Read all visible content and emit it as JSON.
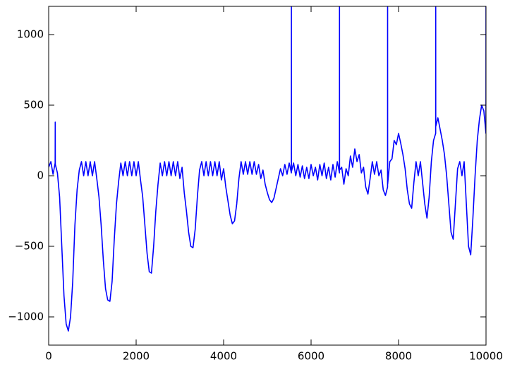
{
  "chart_data": {
    "type": "line",
    "color": "#0000ff",
    "x": [
      0,
      50,
      100,
      148,
      150,
      152,
      200,
      250,
      300,
      350,
      400,
      450,
      500,
      550,
      600,
      650,
      700,
      750,
      800,
      850,
      900,
      950,
      1000,
      1050,
      1100,
      1150,
      1200,
      1250,
      1300,
      1350,
      1400,
      1450,
      1500,
      1550,
      1600,
      1650,
      1700,
      1750,
      1800,
      1850,
      1900,
      1950,
      2000,
      2050,
      2100,
      2150,
      2200,
      2250,
      2300,
      2350,
      2400,
      2450,
      2500,
      2550,
      2600,
      2650,
      2700,
      2750,
      2800,
      2850,
      2900,
      2950,
      3000,
      3050,
      3100,
      3150,
      3200,
      3250,
      3300,
      3350,
      3400,
      3450,
      3500,
      3550,
      3600,
      3650,
      3700,
      3750,
      3800,
      3850,
      3900,
      3950,
      4000,
      4050,
      4100,
      4150,
      4200,
      4250,
      4300,
      4350,
      4400,
      4450,
      4500,
      4550,
      4600,
      4650,
      4700,
      4750,
      4800,
      4850,
      4900,
      4950,
      5000,
      5050,
      5100,
      5150,
      5200,
      5250,
      5300,
      5350,
      5400,
      5450,
      5500,
      5549,
      5550,
      5551,
      5600,
      5650,
      5700,
      5750,
      5800,
      5850,
      5900,
      5950,
      6000,
      6050,
      6100,
      6150,
      6200,
      6250,
      6300,
      6350,
      6400,
      6450,
      6500,
      6550,
      6600,
      6649,
      6650,
      6651,
      6700,
      6750,
      6800,
      6850,
      6900,
      6950,
      7000,
      7050,
      7100,
      7150,
      7200,
      7250,
      7300,
      7350,
      7400,
      7450,
      7500,
      7550,
      7600,
      7650,
      7700,
      7749,
      7750,
      7751,
      7800,
      7850,
      7900,
      7950,
      8000,
      8050,
      8100,
      8150,
      8200,
      8250,
      8300,
      8350,
      8400,
      8450,
      8500,
      8550,
      8600,
      8650,
      8700,
      8750,
      8800,
      8849,
      8850,
      8851,
      8900,
      8950,
      9000,
      9050,
      9100,
      9150,
      9200,
      9250,
      9300,
      9350,
      9400,
      9450,
      9500,
      9550,
      9600,
      9650,
      9700,
      9750,
      9800,
      9850,
      9900,
      9950,
      9999,
      10000
    ],
    "values": [
      60,
      100,
      10,
      90,
      380,
      80,
      20,
      -150,
      -500,
      -850,
      -1050,
      -1100,
      -1000,
      -750,
      -350,
      -100,
      40,
      100,
      0,
      100,
      0,
      100,
      0,
      100,
      -20,
      -150,
      -350,
      -600,
      -800,
      -880,
      -890,
      -750,
      -450,
      -200,
      -40,
      90,
      0,
      100,
      0,
      100,
      0,
      100,
      0,
      100,
      -30,
      -150,
      -350,
      -550,
      -680,
      -690,
      -500,
      -250,
      -60,
      90,
      0,
      100,
      0,
      100,
      0,
      100,
      0,
      100,
      -20,
      60,
      -120,
      -250,
      -400,
      -500,
      -510,
      -380,
      -150,
      40,
      100,
      0,
      100,
      0,
      100,
      0,
      100,
      0,
      100,
      -30,
      50,
      -80,
      -180,
      -280,
      -340,
      -320,
      -200,
      -20,
      100,
      10,
      100,
      10,
      100,
      10,
      100,
      10,
      80,
      -20,
      40,
      -60,
      -120,
      -170,
      -190,
      -160,
      -90,
      -20,
      50,
      0,
      80,
      10,
      90,
      20,
      1200,
      30,
      90,
      0,
      80,
      -10,
      70,
      -20,
      60,
      -20,
      80,
      0,
      60,
      -30,
      80,
      0,
      90,
      -20,
      60,
      -30,
      80,
      -10,
      100,
      20,
      1200,
      40,
      60,
      -60,
      50,
      0,
      140,
      60,
      190,
      100,
      150,
      20,
      60,
      -80,
      -130,
      -20,
      100,
      10,
      100,
      0,
      40,
      -100,
      -140,
      -80,
      1200,
      -60,
      100,
      120,
      250,
      220,
      300,
      230,
      150,
      50,
      -100,
      -200,
      -230,
      -50,
      100,
      0,
      100,
      -50,
      -200,
      -300,
      -150,
      100,
      250,
      300,
      1200,
      350,
      410,
      330,
      250,
      150,
      0,
      -200,
      -400,
      -450,
      -200,
      50,
      100,
      0,
      100,
      -200,
      -500,
      -560,
      -300,
      0,
      250,
      400,
      500,
      460,
      300,
      1200
    ],
    "xlim": [
      0,
      10000
    ],
    "ylim": [
      -1200,
      1200
    ],
    "xticks": [
      0,
      2000,
      4000,
      6000,
      8000,
      10000
    ],
    "yticks": [
      {
        "value": -1000,
        "label": "−1000"
      },
      {
        "value": -500,
        "label": "−500"
      },
      0,
      500,
      1000
    ]
  }
}
